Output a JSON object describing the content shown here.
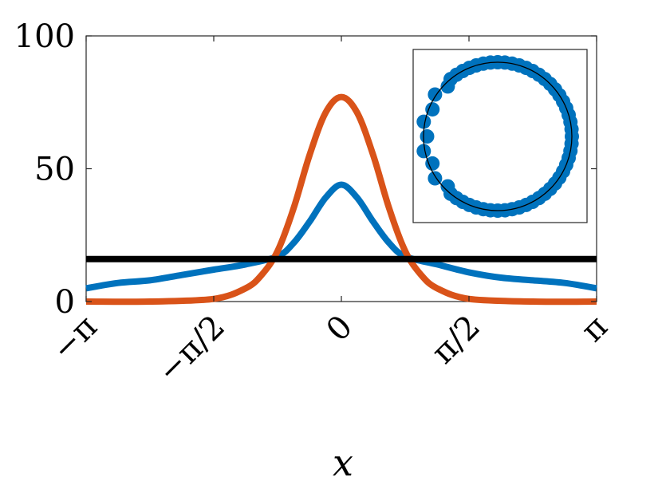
{
  "chart_data": {
    "type": "line",
    "xlabel": "x",
    "ylabel": "",
    "xlim": [
      -3.14159,
      3.14159
    ],
    "ylim": [
      0,
      100
    ],
    "xticks": [
      {
        "value": -3.14159,
        "label": "−π"
      },
      {
        "value": -1.5708,
        "label": "−π/2"
      },
      {
        "value": 0,
        "label": "0"
      },
      {
        "value": 1.5708,
        "label": "π/2"
      },
      {
        "value": 3.14159,
        "label": "π"
      }
    ],
    "yticks": [
      {
        "value": 0,
        "label": "0"
      },
      {
        "value": 50,
        "label": "50"
      },
      {
        "value": 100,
        "label": "100"
      }
    ],
    "grid": false,
    "series": [
      {
        "color": "#0072BD",
        "x": [
          -3.142,
          -2.749,
          -2.356,
          -1.963,
          -1.571,
          -1.178,
          -0.785,
          -0.589,
          -0.393,
          -0.196,
          0.0,
          0.196,
          0.393,
          0.589,
          0.785,
          1.178,
          1.571,
          1.963,
          2.356,
          2.749,
          3.142
        ],
        "y": [
          5,
          7,
          8,
          10,
          12,
          14,
          17,
          22,
          30,
          39,
          44,
          39,
          30,
          22,
          17,
          14,
          11,
          9,
          8,
          7,
          5
        ]
      },
      {
        "color": "#D95319",
        "x": [
          -3.142,
          -2.356,
          -1.571,
          -1.178,
          -0.982,
          -0.785,
          -0.589,
          -0.393,
          -0.196,
          0.0,
          0.196,
          0.393,
          0.589,
          0.785,
          0.982,
          1.178,
          1.571,
          2.356,
          3.142
        ],
        "y": [
          0,
          0,
          1,
          5,
          10,
          19,
          35,
          55,
          71,
          77,
          71,
          55,
          35,
          19,
          10,
          5,
          1,
          0,
          0
        ]
      },
      {
        "color": "#000000",
        "x": [
          -3.142,
          3.142
        ],
        "y": [
          16,
          16
        ]
      }
    ],
    "inset": {
      "type": "scatter",
      "marker_color": "#0072BD",
      "reference_circle_color": "#000000",
      "center": [
        0,
        0
      ],
      "radius": 1,
      "thinned_angle_range_deg": [
        130,
        230
      ],
      "marker_count": 64
    }
  }
}
